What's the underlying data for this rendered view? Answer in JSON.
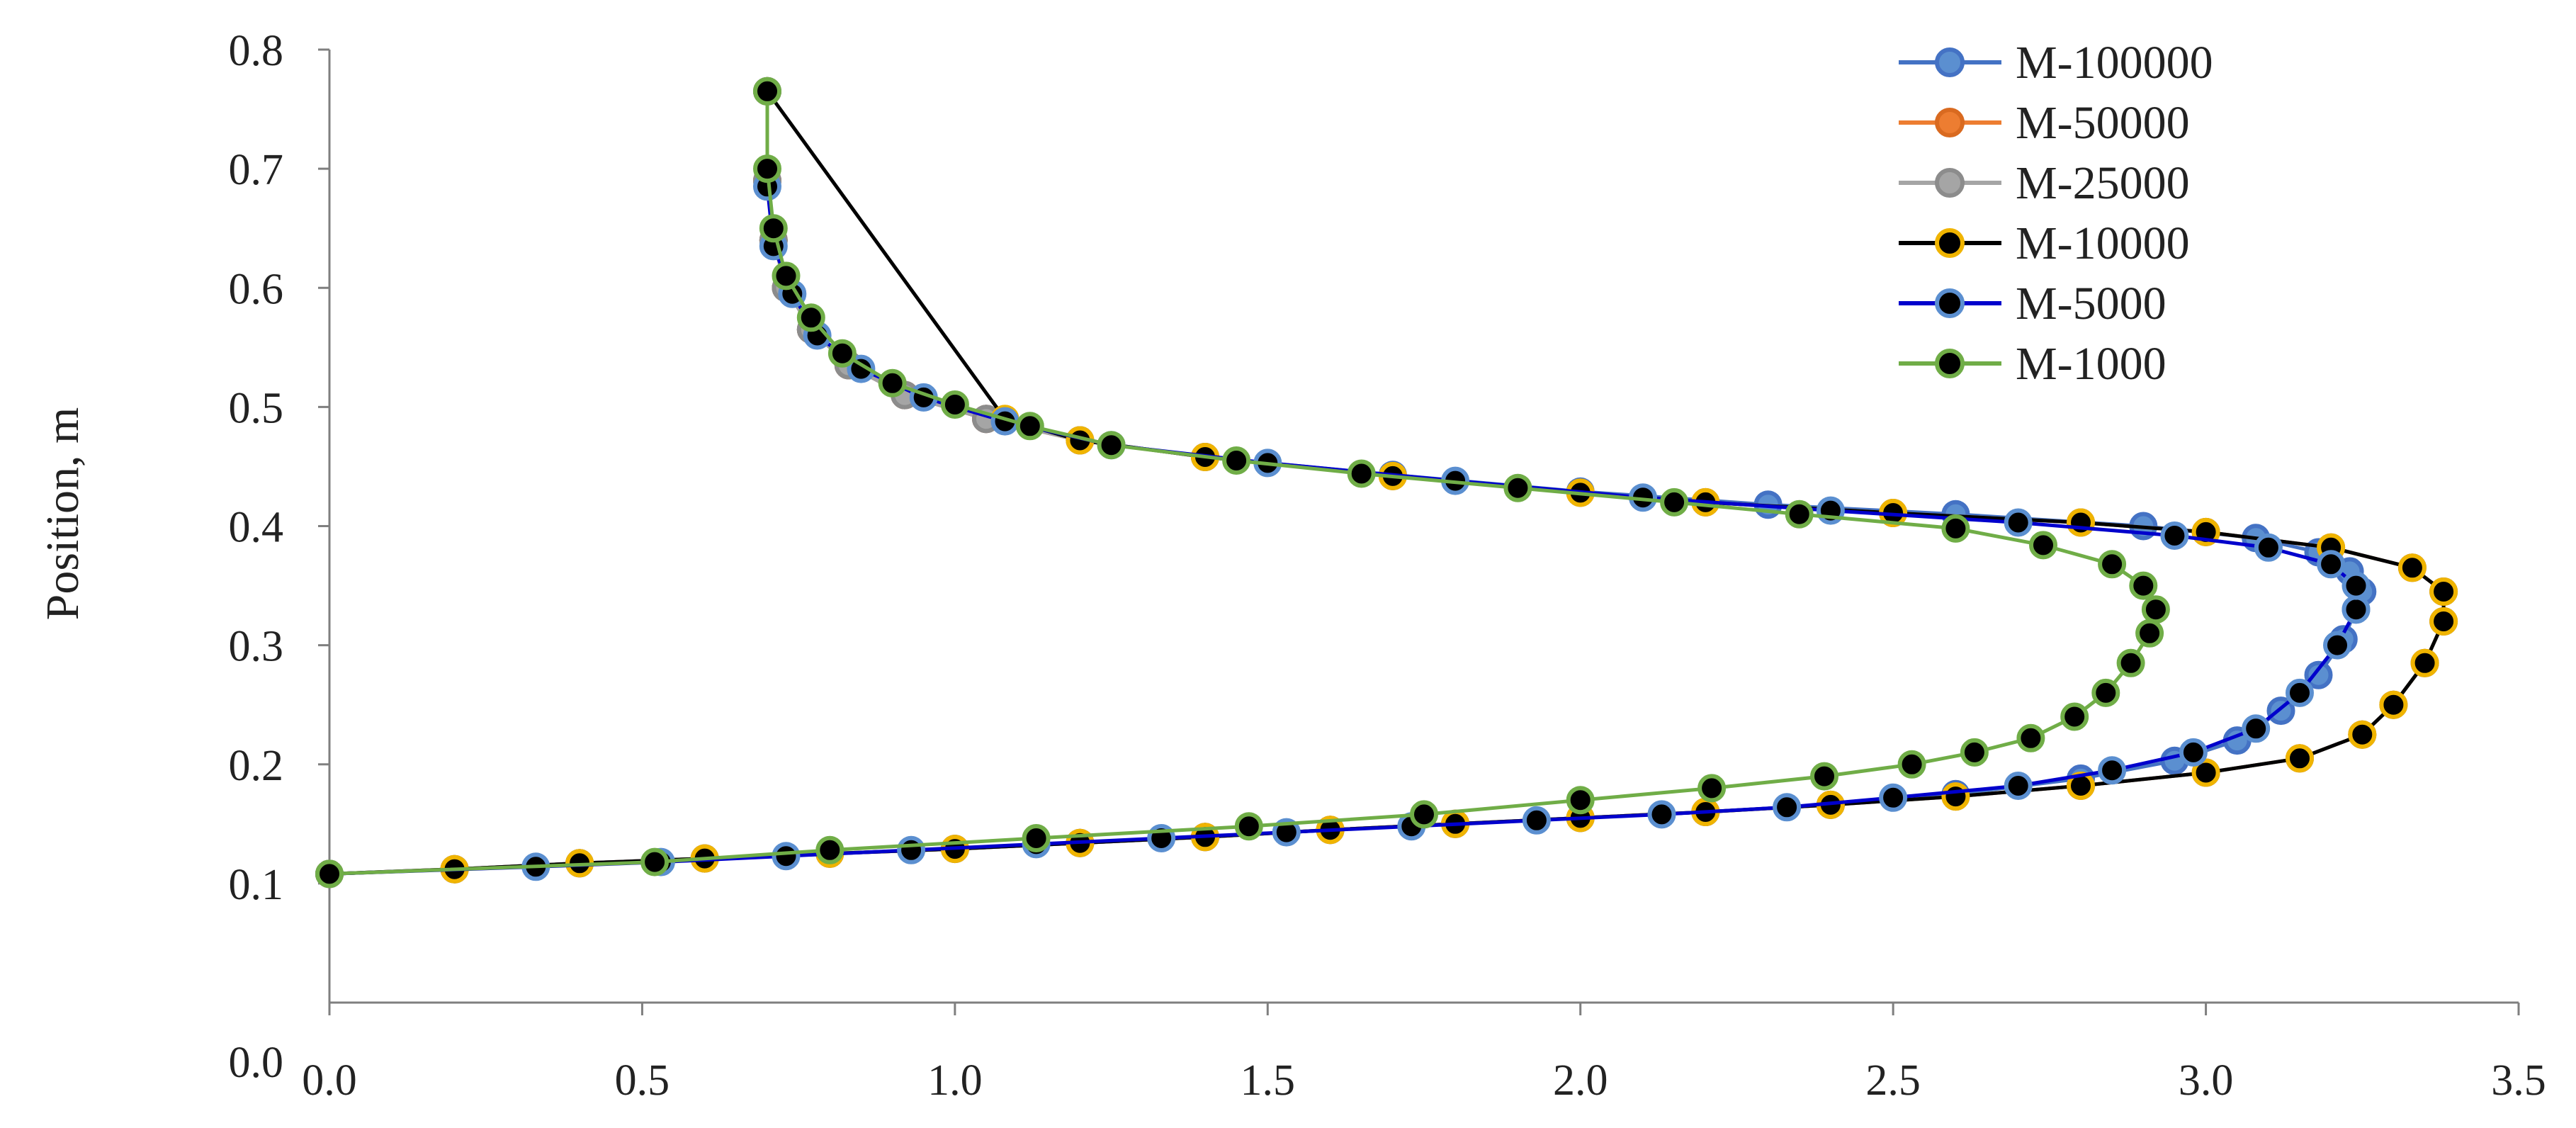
{
  "chart_data": {
    "type": "scatter",
    "title": "",
    "xlabel": "",
    "ylabel": "Position, m",
    "xlim": [
      0,
      3.5
    ],
    "ylim": [
      0,
      0.8
    ],
    "x_ticks": [
      "0.0",
      "0.5",
      "1.0",
      "1.5",
      "2.0",
      "2.5",
      "3.0",
      "3.5"
    ],
    "y_ticks": [
      "0.0",
      "0.1",
      "0.2",
      "0.3",
      "0.4",
      "0.5",
      "0.6",
      "0.7",
      "0.8"
    ],
    "grid": false,
    "legend_position": "top-right",
    "series": [
      {
        "name": "M-100000",
        "line_color": "#4472C4",
        "marker_fill": "#5B8FD0",
        "marker_edge": "#4472C4",
        "points": [
          [
            0.0,
            0.108
          ],
          [
            0.2,
            0.112
          ],
          [
            0.4,
            0.117
          ],
          [
            0.6,
            0.121
          ],
          [
            0.8,
            0.125
          ],
          [
            1.0,
            0.129
          ],
          [
            1.2,
            0.134
          ],
          [
            1.4,
            0.139
          ],
          [
            1.6,
            0.145
          ],
          [
            1.8,
            0.15
          ],
          [
            2.0,
            0.155
          ],
          [
            2.2,
            0.16
          ],
          [
            2.4,
            0.166
          ],
          [
            2.6,
            0.175
          ],
          [
            2.8,
            0.188
          ],
          [
            2.95,
            0.203
          ],
          [
            3.05,
            0.22
          ],
          [
            3.12,
            0.245
          ],
          [
            3.18,
            0.275
          ],
          [
            3.22,
            0.305
          ],
          [
            3.24,
            0.33
          ],
          [
            3.25,
            0.345
          ],
          [
            3.23,
            0.362
          ],
          [
            3.18,
            0.378
          ],
          [
            3.08,
            0.39
          ],
          [
            2.9,
            0.4
          ],
          [
            2.6,
            0.41
          ],
          [
            2.3,
            0.418
          ],
          [
            2.0,
            0.429
          ],
          [
            1.7,
            0.443
          ],
          [
            1.4,
            0.458
          ],
          [
            1.2,
            0.472
          ],
          [
            1.05,
            0.49
          ],
          [
            0.92,
            0.51
          ],
          [
            0.83,
            0.535
          ],
          [
            0.77,
            0.565
          ],
          [
            0.73,
            0.6
          ],
          [
            0.71,
            0.64
          ],
          [
            0.7,
            0.69
          ],
          [
            0.7,
            0.765
          ]
        ]
      },
      {
        "name": "M-50000",
        "line_color": "#ED7D31",
        "marker_fill": "#ED7D31",
        "marker_edge": "#D96A20",
        "points": [
          [
            0.0,
            0.108
          ],
          [
            0.2,
            0.112
          ],
          [
            0.4,
            0.117
          ],
          [
            0.6,
            0.121
          ],
          [
            0.8,
            0.125
          ],
          [
            1.0,
            0.129
          ],
          [
            1.2,
            0.134
          ],
          [
            1.4,
            0.139
          ],
          [
            1.6,
            0.145
          ],
          [
            1.8,
            0.15
          ],
          [
            2.0,
            0.155
          ],
          [
            2.2,
            0.16
          ],
          [
            2.4,
            0.166
          ],
          [
            2.6,
            0.173
          ],
          [
            2.8,
            0.182
          ],
          [
            3.0,
            0.193
          ],
          [
            3.15,
            0.205
          ],
          [
            3.25,
            0.225
          ],
          [
            3.3,
            0.25
          ],
          [
            3.35,
            0.285
          ],
          [
            3.38,
            0.32
          ],
          [
            3.38,
            0.345
          ],
          [
            3.33,
            0.365
          ],
          [
            3.2,
            0.382
          ],
          [
            3.0,
            0.395
          ],
          [
            2.8,
            0.403
          ],
          [
            2.5,
            0.411
          ],
          [
            2.2,
            0.42
          ],
          [
            2.0,
            0.428
          ],
          [
            1.7,
            0.442
          ],
          [
            1.4,
            0.458
          ],
          [
            1.2,
            0.472
          ],
          [
            1.05,
            0.49
          ],
          [
            0.92,
            0.51
          ],
          [
            0.83,
            0.535
          ],
          [
            0.77,
            0.565
          ],
          [
            0.73,
            0.6
          ],
          [
            0.71,
            0.64
          ],
          [
            0.7,
            0.69
          ],
          [
            0.7,
            0.765
          ]
        ]
      },
      {
        "name": "M-25000",
        "line_color": "#A5A5A5",
        "marker_fill": "#A5A5A5",
        "marker_edge": "#8C8C8C",
        "points": [
          [
            0.0,
            0.108
          ],
          [
            0.2,
            0.112
          ],
          [
            0.4,
            0.117
          ],
          [
            0.6,
            0.121
          ],
          [
            0.8,
            0.125
          ],
          [
            1.0,
            0.129
          ],
          [
            1.2,
            0.134
          ],
          [
            1.4,
            0.139
          ],
          [
            1.6,
            0.145
          ],
          [
            1.8,
            0.15
          ],
          [
            2.0,
            0.155
          ],
          [
            2.2,
            0.16
          ],
          [
            2.4,
            0.166
          ],
          [
            2.6,
            0.173
          ],
          [
            2.8,
            0.182
          ],
          [
            3.0,
            0.193
          ],
          [
            3.15,
            0.205
          ],
          [
            3.25,
            0.225
          ],
          [
            3.3,
            0.25
          ],
          [
            3.35,
            0.285
          ],
          [
            3.38,
            0.32
          ],
          [
            3.38,
            0.345
          ],
          [
            3.33,
            0.365
          ],
          [
            3.2,
            0.382
          ],
          [
            3.0,
            0.395
          ],
          [
            2.8,
            0.403
          ],
          [
            2.5,
            0.411
          ],
          [
            2.2,
            0.42
          ],
          [
            2.0,
            0.428
          ],
          [
            1.7,
            0.442
          ],
          [
            1.4,
            0.458
          ],
          [
            1.2,
            0.472
          ],
          [
            1.05,
            0.49
          ],
          [
            0.92,
            0.51
          ],
          [
            0.83,
            0.535
          ],
          [
            0.77,
            0.565
          ],
          [
            0.73,
            0.6
          ],
          [
            0.71,
            0.64
          ],
          [
            0.7,
            0.69
          ],
          [
            0.7,
            0.765
          ]
        ]
      },
      {
        "name": "M-10000",
        "line_color": "#000000",
        "marker_fill": "#000000",
        "marker_edge": "#F0B400",
        "points": [
          [
            0.0,
            0.108
          ],
          [
            0.2,
            0.112
          ],
          [
            0.4,
            0.117
          ],
          [
            0.6,
            0.121
          ],
          [
            0.8,
            0.125
          ],
          [
            1.0,
            0.129
          ],
          [
            1.2,
            0.134
          ],
          [
            1.4,
            0.139
          ],
          [
            1.6,
            0.145
          ],
          [
            1.8,
            0.15
          ],
          [
            2.0,
            0.155
          ],
          [
            2.2,
            0.16
          ],
          [
            2.4,
            0.166
          ],
          [
            2.6,
            0.173
          ],
          [
            2.8,
            0.182
          ],
          [
            3.0,
            0.193
          ],
          [
            3.15,
            0.205
          ],
          [
            3.25,
            0.225
          ],
          [
            3.3,
            0.25
          ],
          [
            3.35,
            0.285
          ],
          [
            3.38,
            0.32
          ],
          [
            3.38,
            0.345
          ],
          [
            3.33,
            0.365
          ],
          [
            3.2,
            0.382
          ],
          [
            3.0,
            0.395
          ],
          [
            2.8,
            0.403
          ],
          [
            2.5,
            0.411
          ],
          [
            2.2,
            0.42
          ],
          [
            2.0,
            0.428
          ],
          [
            1.7,
            0.442
          ],
          [
            1.4,
            0.458
          ],
          [
            1.2,
            0.472
          ],
          [
            1.08,
            0.49
          ],
          [
            0.7,
            0.765
          ]
        ]
      },
      {
        "name": "M-5000",
        "line_color": "#0000CC",
        "marker_fill": "#000000",
        "marker_edge": "#5B8FD0",
        "points": [
          [
            0.0,
            0.108
          ],
          [
            0.33,
            0.114
          ],
          [
            0.53,
            0.118
          ],
          [
            0.73,
            0.123
          ],
          [
            0.93,
            0.128
          ],
          [
            1.13,
            0.133
          ],
          [
            1.33,
            0.138
          ],
          [
            1.53,
            0.143
          ],
          [
            1.73,
            0.148
          ],
          [
            1.93,
            0.153
          ],
          [
            2.13,
            0.158
          ],
          [
            2.33,
            0.164
          ],
          [
            2.5,
            0.172
          ],
          [
            2.7,
            0.182
          ],
          [
            2.85,
            0.195
          ],
          [
            2.98,
            0.21
          ],
          [
            3.08,
            0.23
          ],
          [
            3.15,
            0.26
          ],
          [
            3.21,
            0.3
          ],
          [
            3.24,
            0.33
          ],
          [
            3.24,
            0.35
          ],
          [
            3.2,
            0.368
          ],
          [
            3.1,
            0.382
          ],
          [
            2.95,
            0.392
          ],
          [
            2.7,
            0.403
          ],
          [
            2.4,
            0.413
          ],
          [
            2.1,
            0.424
          ],
          [
            1.8,
            0.438
          ],
          [
            1.5,
            0.453
          ],
          [
            1.25,
            0.468
          ],
          [
            1.08,
            0.488
          ],
          [
            0.95,
            0.508
          ],
          [
            0.85,
            0.532
          ],
          [
            0.78,
            0.56
          ],
          [
            0.74,
            0.595
          ],
          [
            0.71,
            0.635
          ],
          [
            0.7,
            0.685
          ],
          [
            0.7,
            0.765
          ]
        ]
      },
      {
        "name": "M-1000",
        "line_color": "#70AD47",
        "marker_fill": "#000000",
        "marker_edge": "#70AD47",
        "points": [
          [
            0.0,
            0.108
          ],
          [
            0.52,
            0.118
          ],
          [
            0.8,
            0.128
          ],
          [
            1.13,
            0.138
          ],
          [
            1.47,
            0.148
          ],
          [
            1.75,
            0.158
          ],
          [
            2.0,
            0.17
          ],
          [
            2.21,
            0.18
          ],
          [
            2.39,
            0.19
          ],
          [
            2.53,
            0.2
          ],
          [
            2.63,
            0.21
          ],
          [
            2.72,
            0.222
          ],
          [
            2.79,
            0.24
          ],
          [
            2.84,
            0.26
          ],
          [
            2.88,
            0.285
          ],
          [
            2.91,
            0.31
          ],
          [
            2.92,
            0.33
          ],
          [
            2.9,
            0.35
          ],
          [
            2.85,
            0.368
          ],
          [
            2.74,
            0.384
          ],
          [
            2.6,
            0.398
          ],
          [
            2.35,
            0.41
          ],
          [
            2.15,
            0.42
          ],
          [
            1.9,
            0.432
          ],
          [
            1.65,
            0.444
          ],
          [
            1.45,
            0.455
          ],
          [
            1.25,
            0.468
          ],
          [
            1.12,
            0.484
          ],
          [
            1.0,
            0.502
          ],
          [
            0.9,
            0.52
          ],
          [
            0.82,
            0.545
          ],
          [
            0.77,
            0.575
          ],
          [
            0.73,
            0.61
          ],
          [
            0.71,
            0.65
          ],
          [
            0.7,
            0.7
          ],
          [
            0.7,
            0.765
          ]
        ]
      }
    ]
  }
}
